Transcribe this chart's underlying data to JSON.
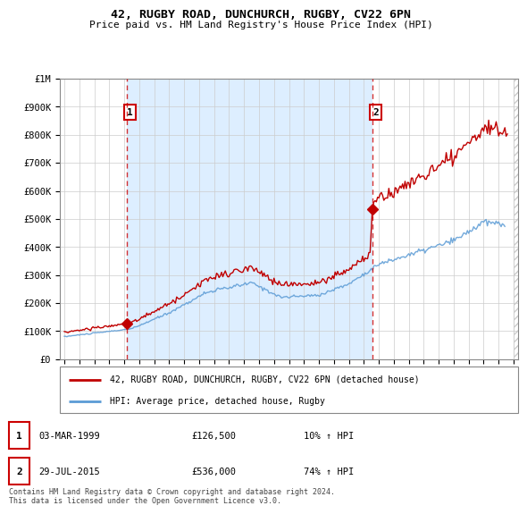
{
  "title": "42, RUGBY ROAD, DUNCHURCH, RUGBY, CV22 6PN",
  "subtitle": "Price paid vs. HM Land Registry's House Price Index (HPI)",
  "legend_line1": "42, RUGBY ROAD, DUNCHURCH, RUGBY, CV22 6PN (detached house)",
  "legend_line2": "HPI: Average price, detached house, Rugby",
  "sale1_date": 1999.17,
  "sale1_price": 126500,
  "sale1_label": "1",
  "sale2_date": 2015.57,
  "sale2_price": 536000,
  "sale2_label": "2",
  "footer": "Contains HM Land Registry data © Crown copyright and database right 2024.\nThis data is licensed under the Open Government Licence v3.0.",
  "hpi_color": "#5b9bd5",
  "price_color": "#c00000",
  "vline_color": "#cc0000",
  "highlight_color": "#ddeeff",
  "ylim": [
    0,
    1000000
  ],
  "xlim": [
    1994.7,
    2025.3
  ],
  "background_color": "#ffffff",
  "grid_color": "#cccccc"
}
